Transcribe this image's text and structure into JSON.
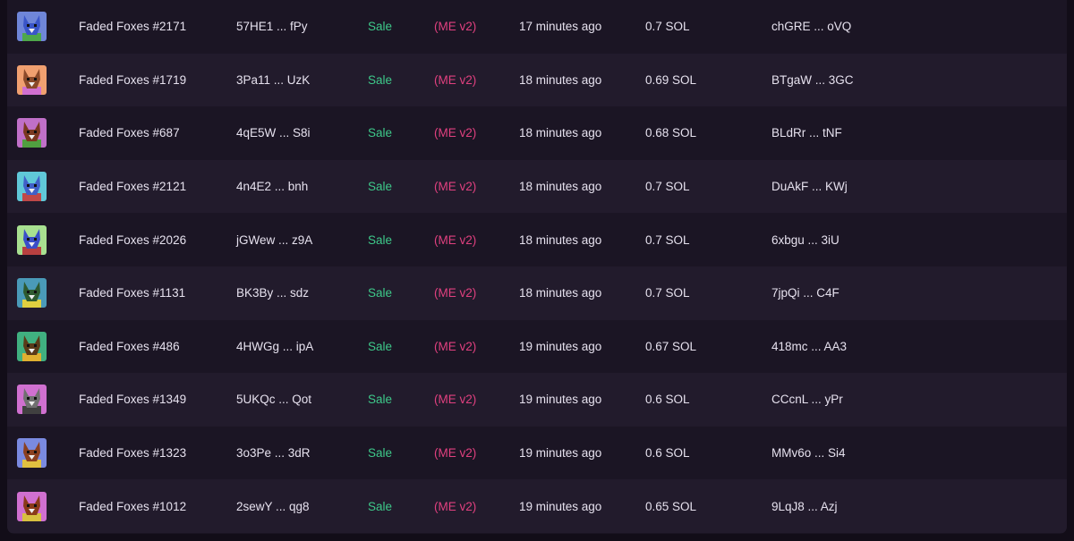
{
  "colors": {
    "sale": "#3ec98a",
    "marketplace": "#e0407f",
    "text": "#e6e1ee"
  },
  "rows": [
    {
      "name": "Faded Foxes #2171",
      "mint": "57HE1 ... fPy",
      "type": "Sale",
      "marketplace": "(ME v2)",
      "time": "17 minutes ago",
      "price": "0.7 SOL",
      "buyer": "chGRE ... oVQ",
      "thumb": {
        "bg": "#6f86d8",
        "fur": "#3a55c8",
        "shirt": "#4ea84a"
      }
    },
    {
      "name": "Faded Foxes #1719",
      "mint": "3Pa11 ... UzK",
      "type": "Sale",
      "marketplace": "(ME v2)",
      "time": "18 minutes ago",
      "price": "0.69 SOL",
      "buyer": "BTgaW ... 3GC",
      "thumb": {
        "bg": "#f0a070",
        "fur": "#8b4a2a",
        "shirt": "#d070d0"
      }
    },
    {
      "name": "Faded Foxes #687",
      "mint": "4qE5W ... S8i",
      "type": "Sale",
      "marketplace": "(ME v2)",
      "time": "18 minutes ago",
      "price": "0.68 SOL",
      "buyer": "BLdRr ... tNF",
      "thumb": {
        "bg": "#c070c8",
        "fur": "#7a3820",
        "shirt": "#50a040"
      }
    },
    {
      "name": "Faded Foxes #2121",
      "mint": "4n4E2 ... bnh",
      "type": "Sale",
      "marketplace": "(ME v2)",
      "time": "18 minutes ago",
      "price": "0.7 SOL",
      "buyer": "DuAkF ... KWj",
      "thumb": {
        "bg": "#60c8d8",
        "fur": "#4060c8",
        "shirt": "#c04848"
      }
    },
    {
      "name": "Faded Foxes #2026",
      "mint": "jGWew ... z9A",
      "type": "Sale",
      "marketplace": "(ME v2)",
      "time": "18 minutes ago",
      "price": "0.7 SOL",
      "buyer": "6xbgu ... 3iU",
      "thumb": {
        "bg": "#a8e090",
        "fur": "#3a4ec8",
        "shirt": "#b84040"
      }
    },
    {
      "name": "Faded Foxes #1131",
      "mint": "BK3By ... sdz",
      "type": "Sale",
      "marketplace": "(ME v2)",
      "time": "18 minutes ago",
      "price": "0.7 SOL",
      "buyer": "7jpQi ... C4F",
      "thumb": {
        "bg": "#4a9ab8",
        "fur": "#2e5a30",
        "shirt": "#e0d040"
      }
    },
    {
      "name": "Faded Foxes #486",
      "mint": "4HWGg ... ipA",
      "type": "Sale",
      "marketplace": "(ME v2)",
      "time": "19 minutes ago",
      "price": "0.67 SOL",
      "buyer": "418mc ... AA3",
      "thumb": {
        "bg": "#40b080",
        "fur": "#5a3a18",
        "shirt": "#e0b030"
      }
    },
    {
      "name": "Faded Foxes #1349",
      "mint": "5UKQc ... Qot",
      "type": "Sale",
      "marketplace": "(ME v2)",
      "time": "19 minutes ago",
      "price": "0.6 SOL",
      "buyer": "CCcnL ... yPr",
      "thumb": {
        "bg": "#d070d0",
        "fur": "#707070",
        "shirt": "#404040"
      }
    },
    {
      "name": "Faded Foxes #1323",
      "mint": "3o3Pe ... 3dR",
      "type": "Sale",
      "marketplace": "(ME v2)",
      "time": "19 minutes ago",
      "price": "0.6 SOL",
      "buyer": "MMv6o ... Si4",
      "thumb": {
        "bg": "#7a8ae0",
        "fur": "#8a4020",
        "shirt": "#e0c040"
      }
    },
    {
      "name": "Faded Foxes #1012",
      "mint": "2sewY ... qg8",
      "type": "Sale",
      "marketplace": "(ME v2)",
      "time": "19 minutes ago",
      "price": "0.65 SOL",
      "buyer": "9LqJ8 ... Azj",
      "thumb": {
        "bg": "#d070d0",
        "fur": "#8a3a18",
        "shirt": "#d8c040"
      }
    }
  ]
}
